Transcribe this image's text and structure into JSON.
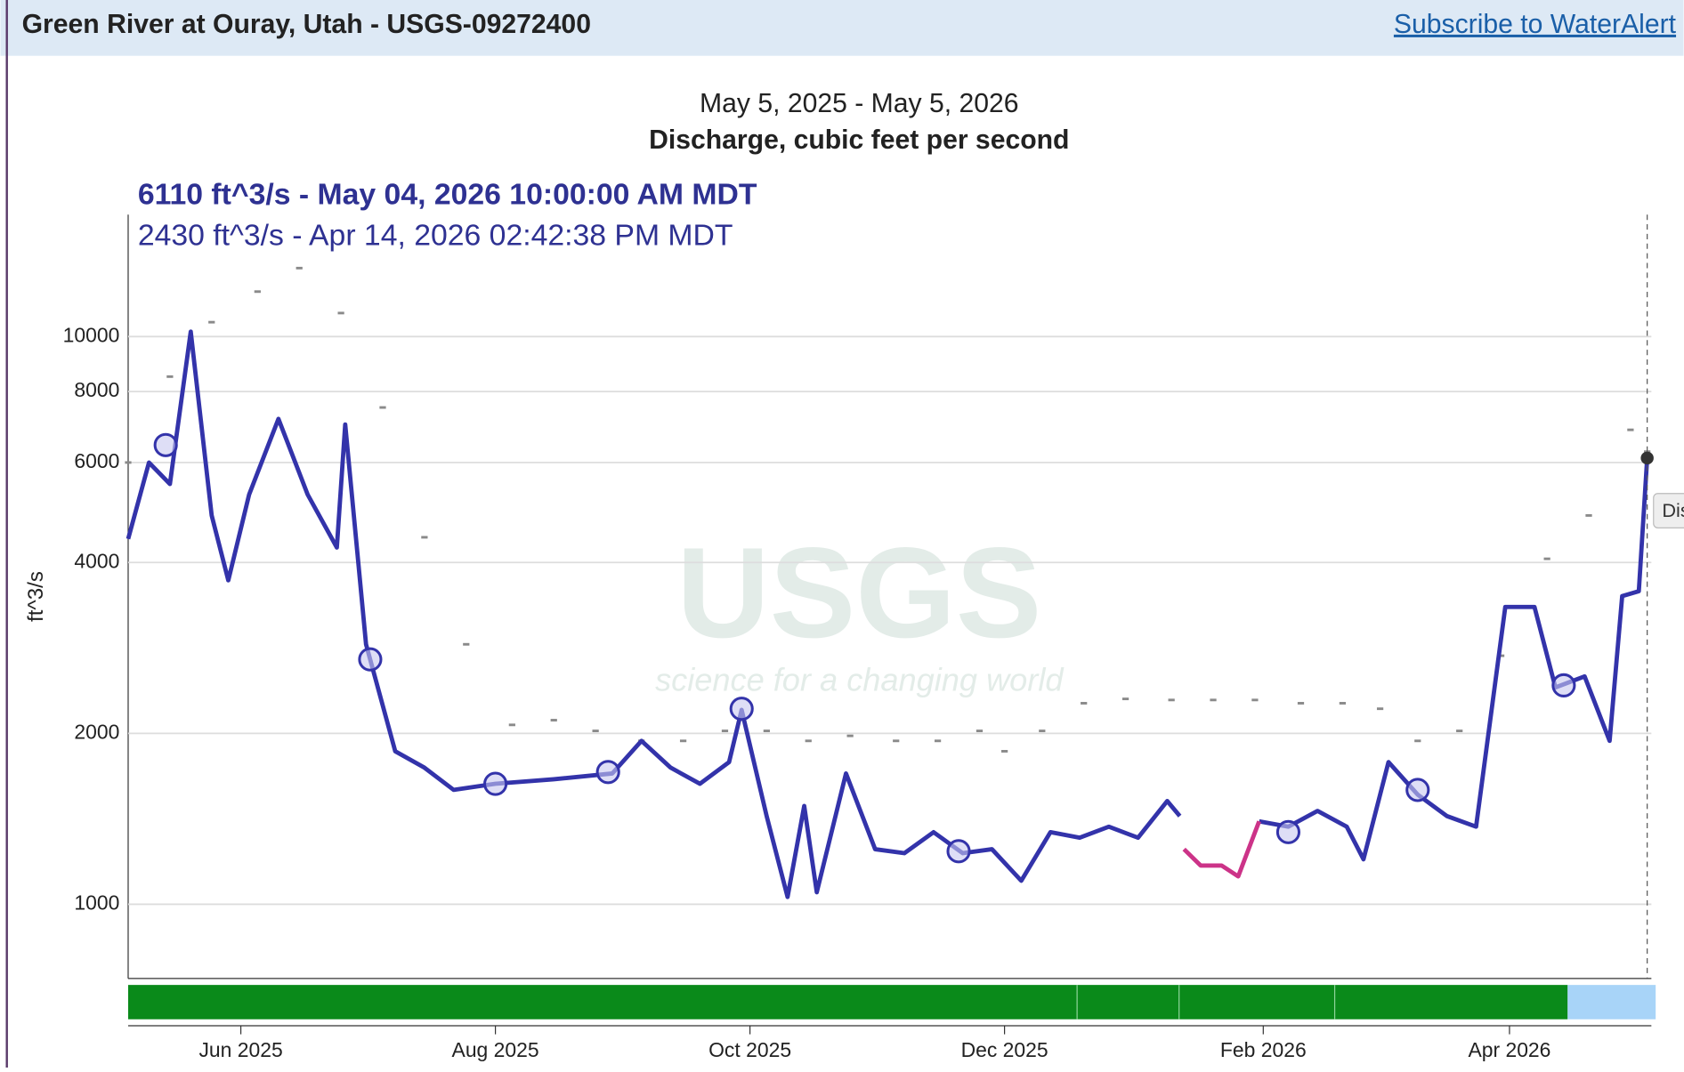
{
  "header": {
    "title": "Green River at Ouray, Utah - USGS-09272400",
    "link": "Subscribe to WaterAlert"
  },
  "chart_data": {
    "type": "line",
    "title": "May 5, 2025 - May 5, 2026",
    "subtitle": "Discharge, cubic feet per second",
    "tooltip": [
      "6110 ft^3/s - May 04, 2026 10:00:00 AM MDT",
      "2430 ft^3/s - Apr 14, 2026 02:42:38 PM MDT"
    ],
    "tooltip_side": "Dis",
    "ylabel": "ft^3/s",
    "watermark": {
      "logo": "USGS",
      "tagline": "science for a changing world"
    },
    "log_y": true,
    "grid": true,
    "xlim": [
      "2025-05-05",
      "2026-05-05"
    ],
    "xticks": [
      {
        "value": "2025-06-01",
        "label": "Jun 2025"
      },
      {
        "value": "2025-08-01",
        "label": "Aug 2025"
      },
      {
        "value": "2025-10-01",
        "label": "Oct 2025"
      },
      {
        "value": "2025-12-01",
        "label": "Dec 2025"
      },
      {
        "value": "2026-02-01",
        "label": "Feb 2026"
      },
      {
        "value": "2026-04-01",
        "label": "Apr 2026"
      }
    ],
    "ylim": [
      740,
      16400
    ],
    "yticks": [
      1000,
      2000,
      4000,
      6000,
      8000,
      10000
    ],
    "series": [
      {
        "style": "dash",
        "color": "#8a8a8a",
        "x": [
          "2025-05-05",
          "2025-05-15",
          "2025-05-25",
          "2025-06-05",
          "2025-06-15",
          "2025-06-25",
          "2025-07-05",
          "2025-07-15",
          "2025-07-25",
          "2025-08-05",
          "2025-08-15",
          "2025-08-25",
          "2025-09-05",
          "2025-09-15",
          "2025-09-25",
          "2025-10-05",
          "2025-10-15",
          "2025-10-25",
          "2025-11-05",
          "2025-11-15",
          "2025-11-25",
          "2025-12-01",
          "2025-12-10",
          "2025-12-20",
          "2025-12-30",
          "2026-01-10",
          "2026-01-20",
          "2026-01-30",
          "2026-02-10",
          "2026-02-20",
          "2026-03-01",
          "2026-03-10",
          "2026-03-20",
          "2026-03-30",
          "2026-04-10",
          "2026-04-20",
          "2026-04-30",
          "2026-05-04"
        ],
        "values": [
          6000,
          8500,
          10600,
          12000,
          13200,
          11000,
          7500,
          4430,
          2870,
          2070,
          2110,
          2020,
          1940,
          1940,
          2020,
          2020,
          1940,
          1980,
          1940,
          1940,
          2020,
          1860,
          2020,
          2260,
          2300,
          2290,
          2290,
          2290,
          2260,
          2260,
          2210,
          1940,
          2020,
          2740,
          4060,
          4840,
          6850,
          6270
        ]
      },
      {
        "style": "line",
        "color": "#3333aa",
        "x": [
          "2025-05-05",
          "2025-05-10",
          "2025-05-15",
          "2025-05-20",
          "2025-05-25",
          "2025-05-29",
          "2025-06-03",
          "2025-06-10",
          "2025-06-17",
          "2025-06-24",
          "2025-06-26",
          "2025-07-01",
          "2025-07-08",
          "2025-07-15",
          "2025-07-22",
          "2025-08-01",
          "2025-08-15",
          "2025-08-29",
          "2025-09-05",
          "2025-09-12",
          "2025-09-19",
          "2025-09-26",
          "2025-09-29",
          "2025-10-05",
          "2025-10-10",
          "2025-10-14",
          "2025-10-17",
          "2025-10-24",
          "2025-10-31",
          "2025-11-07",
          "2025-11-14",
          "2025-11-21",
          "2025-11-28",
          "2025-12-05",
          "2025-12-12",
          "2025-12-19",
          "2025-12-26",
          "2026-01-02",
          "2026-01-09",
          "2026-01-12",
          "2026-01-20",
          "2026-01-31",
          "2026-02-07",
          "2026-02-14",
          "2026-02-21",
          "2026-02-25",
          "2026-03-03",
          "2026-03-10",
          "2026-03-17",
          "2026-03-24",
          "2026-03-31",
          "2026-04-07",
          "2026-04-12",
          "2026-04-19",
          "2026-04-25",
          "2026-04-28",
          "2026-05-02",
          "2026-05-04"
        ],
        "values": [
          4400,
          6000,
          5500,
          10200,
          4840,
          3720,
          5270,
          7160,
          5270,
          4250,
          7000,
          2870,
          1860,
          1740,
          1590,
          1630,
          1660,
          1700,
          1940,
          1740,
          1630,
          1780,
          2200,
          1430,
          1030,
          1490,
          1050,
          1700,
          1250,
          1230,
          1340,
          1230,
          1250,
          1100,
          1340,
          1310,
          1370,
          1310,
          1520,
          1430,
          null,
          1400,
          1370,
          1460,
          1370,
          1200,
          1780,
          1560,
          1430,
          1370,
          3340,
          3340,
          2410,
          2520,
          1940,
          3490,
          3560,
          6110
        ]
      },
      {
        "style": "line",
        "color": "#cc3388",
        "x": [
          "2026-01-13",
          "2026-01-17",
          "2026-01-22",
          "2026-01-26",
          "2026-01-31"
        ],
        "values": [
          1250,
          1170,
          1170,
          1120,
          1400
        ]
      },
      {
        "style": "circle",
        "color": "#3333aa",
        "x": [
          "2025-05-14",
          "2025-07-02",
          "2025-08-01",
          "2025-08-28",
          "2025-09-29",
          "2025-11-20",
          "2026-02-07",
          "2026-03-10",
          "2026-04-14"
        ],
        "values": [
          6440,
          2700,
          1630,
          1710,
          2210,
          1240,
          1340,
          1590,
          2430
        ]
      }
    ]
  }
}
